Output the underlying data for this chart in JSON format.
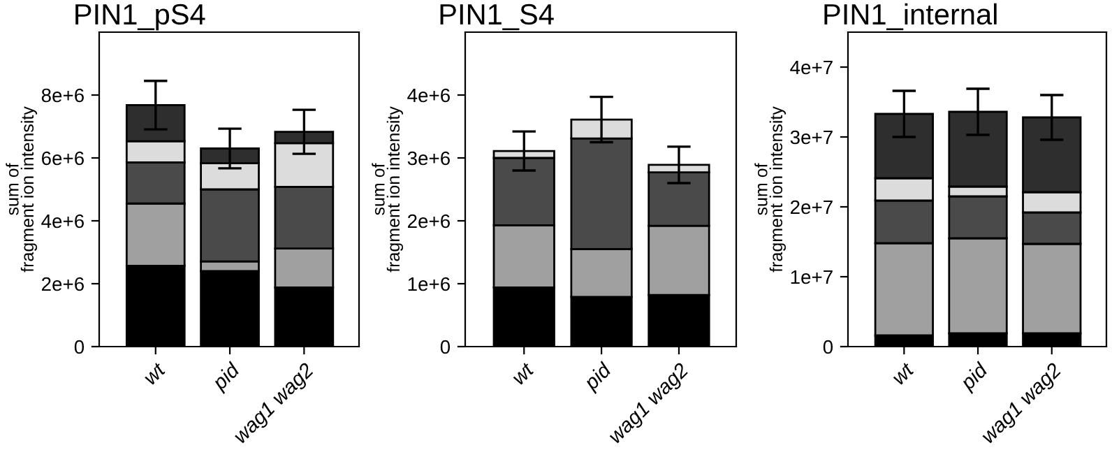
{
  "chart_data": [
    {
      "type": "bar",
      "stacked": true,
      "title": "PIN1_pS4",
      "ylabel": "sum of\nfragment ion intensity",
      "categories": [
        "wt",
        "pid",
        "wag1 wag2"
      ],
      "ylim": [
        0,
        10000000
      ],
      "yticks": [
        0,
        {
          "value": 2000000,
          "label": "2e+6"
        },
        {
          "value": 4000000,
          "label": "4e+6"
        },
        {
          "value": 6000000,
          "label": "6e+6"
        },
        {
          "value": 8000000,
          "label": "8e+6"
        }
      ],
      "grid": false,
      "legend": false,
      "series": [
        {
          "color": "#000000",
          "values": [
            2570000,
            2400000,
            1880000
          ]
        },
        {
          "color": "#a0a0a0",
          "values": [
            1980000,
            310000,
            1240000
          ]
        },
        {
          "color": "#4a4a4a",
          "values": [
            1310000,
            2290000,
            1960000
          ]
        },
        {
          "color": "#dcdcdc",
          "values": [
            670000,
            830000,
            1390000
          ]
        },
        {
          "color": "#2e2e2e",
          "values": [
            1150000,
            470000,
            360000
          ],
          "errors": [
            770000,
            630000,
            700000
          ]
        }
      ]
    },
    {
      "type": "bar",
      "stacked": true,
      "title": "PIN1_S4",
      "ylabel": "sum of\nfragment ion intensity",
      "categories": [
        "wt",
        "pid",
        "wag1 wag2"
      ],
      "ylim": [
        0,
        5000000
      ],
      "yticks": [
        0,
        {
          "value": 1000000,
          "label": "1e+6"
        },
        {
          "value": 2000000,
          "label": "2e+6"
        },
        {
          "value": 3000000,
          "label": "3e+6"
        },
        {
          "value": 4000000,
          "label": "4e+6"
        }
      ],
      "grid": false,
      "legend": false,
      "series": [
        {
          "color": "#000000",
          "values": [
            940000,
            790000,
            820000
          ]
        },
        {
          "color": "#a0a0a0",
          "values": [
            990000,
            760000,
            1100000
          ]
        },
        {
          "color": "#4a4a4a",
          "values": [
            1070000,
            1760000,
            850000
          ]
        },
        {
          "color": "#dcdcdc",
          "values": [
            110000,
            300000,
            120000
          ],
          "errors": [
            310000,
            360000,
            290000
          ]
        }
      ]
    },
    {
      "type": "bar",
      "stacked": true,
      "title": "PIN1_internal",
      "ylabel": "sum of\nfragment ion intensity",
      "categories": [
        "wt",
        "pid",
        "wag1 wag2"
      ],
      "ylim": [
        0,
        45000000
      ],
      "yticks": [
        0,
        {
          "value": 10000000,
          "label": "1e+7"
        },
        {
          "value": 20000000,
          "label": "2e+7"
        },
        {
          "value": 30000000,
          "label": "3e+7"
        },
        {
          "value": 40000000,
          "label": "4e+7"
        }
      ],
      "grid": false,
      "legend": false,
      "series": [
        {
          "color": "#000000",
          "values": [
            1600000,
            1900000,
            1900000
          ]
        },
        {
          "color": "#a0a0a0",
          "values": [
            13200000,
            13600000,
            12800000
          ]
        },
        {
          "color": "#4a4a4a",
          "values": [
            6100000,
            6000000,
            4500000
          ]
        },
        {
          "color": "#dcdcdc",
          "values": [
            3200000,
            1400000,
            2900000
          ]
        },
        {
          "color": "#2e2e2e",
          "values": [
            9200000,
            10700000,
            10700000
          ],
          "errors": [
            3300000,
            3300000,
            3200000
          ]
        }
      ]
    }
  ]
}
